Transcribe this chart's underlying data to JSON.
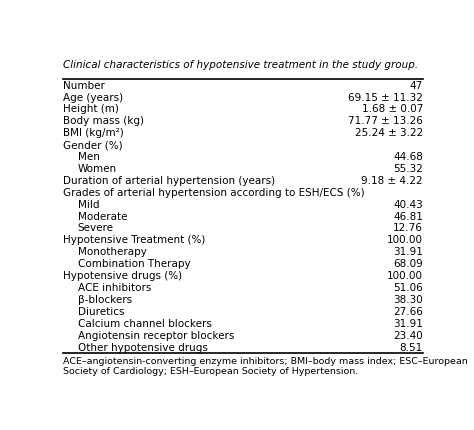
{
  "title": "Clinical characteristics of hypotensive treatment in the study group.",
  "rows": [
    {
      "label": "Number",
      "value": "47",
      "indent": 0,
      "bold": false
    },
    {
      "label": "Age (years)",
      "value": "69.15 ± 11.32",
      "indent": 0,
      "bold": false
    },
    {
      "label": "Height (m)",
      "value": "1.68 ± 0.07",
      "indent": 0,
      "bold": false
    },
    {
      "label": "Body mass (kg)",
      "value": "71.77 ± 13.26",
      "indent": 0,
      "bold": false
    },
    {
      "label": "BMI (kg/m²)",
      "value": "25.24 ± 3.22",
      "indent": 0,
      "bold": false
    },
    {
      "label": "Gender (%)",
      "value": "",
      "indent": 0,
      "bold": false
    },
    {
      "label": "Men",
      "value": "44.68",
      "indent": 1,
      "bold": false
    },
    {
      "label": "Women",
      "value": "55.32",
      "indent": 1,
      "bold": false
    },
    {
      "label": "Duration of arterial hypertension (years)",
      "value": "9.18 ± 4.22",
      "indent": 0,
      "bold": false
    },
    {
      "label": "Grades of arterial hypertension according to ESH/ECS (%)",
      "value": "",
      "indent": 0,
      "bold": false
    },
    {
      "label": "Mild",
      "value": "40.43",
      "indent": 1,
      "bold": false
    },
    {
      "label": "Moderate",
      "value": "46.81",
      "indent": 1,
      "bold": false
    },
    {
      "label": "Severe",
      "value": "12.76",
      "indent": 1,
      "bold": false
    },
    {
      "label": "Hypotensive Treatment (%)",
      "value": "100.00",
      "indent": 0,
      "bold": false
    },
    {
      "label": "Monotherapy",
      "value": "31.91",
      "indent": 1,
      "bold": false
    },
    {
      "label": "Combination Therapy",
      "value": "68.09",
      "indent": 1,
      "bold": false
    },
    {
      "label": "Hypotensive drugs (%)",
      "value": "100.00",
      "indent": 0,
      "bold": false
    },
    {
      "label": "ACE inhibitors",
      "value": "51.06",
      "indent": 1,
      "bold": false
    },
    {
      "label": "β-blockers",
      "value": "38.30",
      "indent": 1,
      "bold": false
    },
    {
      "label": "Diuretics",
      "value": "27.66",
      "indent": 1,
      "bold": false
    },
    {
      "label": "Calcium channel blockers",
      "value": "31.91",
      "indent": 1,
      "bold": false
    },
    {
      "label": "Angiotensin receptor blockers",
      "value": "23.40",
      "indent": 1,
      "bold": false
    },
    {
      "label": "Other hypotensive drugs",
      "value": "8.51",
      "indent": 1,
      "bold": false
    }
  ],
  "footnote": "ACE–angiotensin-converting enzyme inhibitors; BMI–body mass index; ESC–European\nSociety of Cardiology; ESH–European Society of Hypertension.",
  "bg_color": "#ffffff",
  "text_color": "#000000",
  "line_color": "#000000",
  "font_size": 7.5,
  "title_font_size": 7.5,
  "footnote_font_size": 6.8,
  "indent_amount": 0.04
}
